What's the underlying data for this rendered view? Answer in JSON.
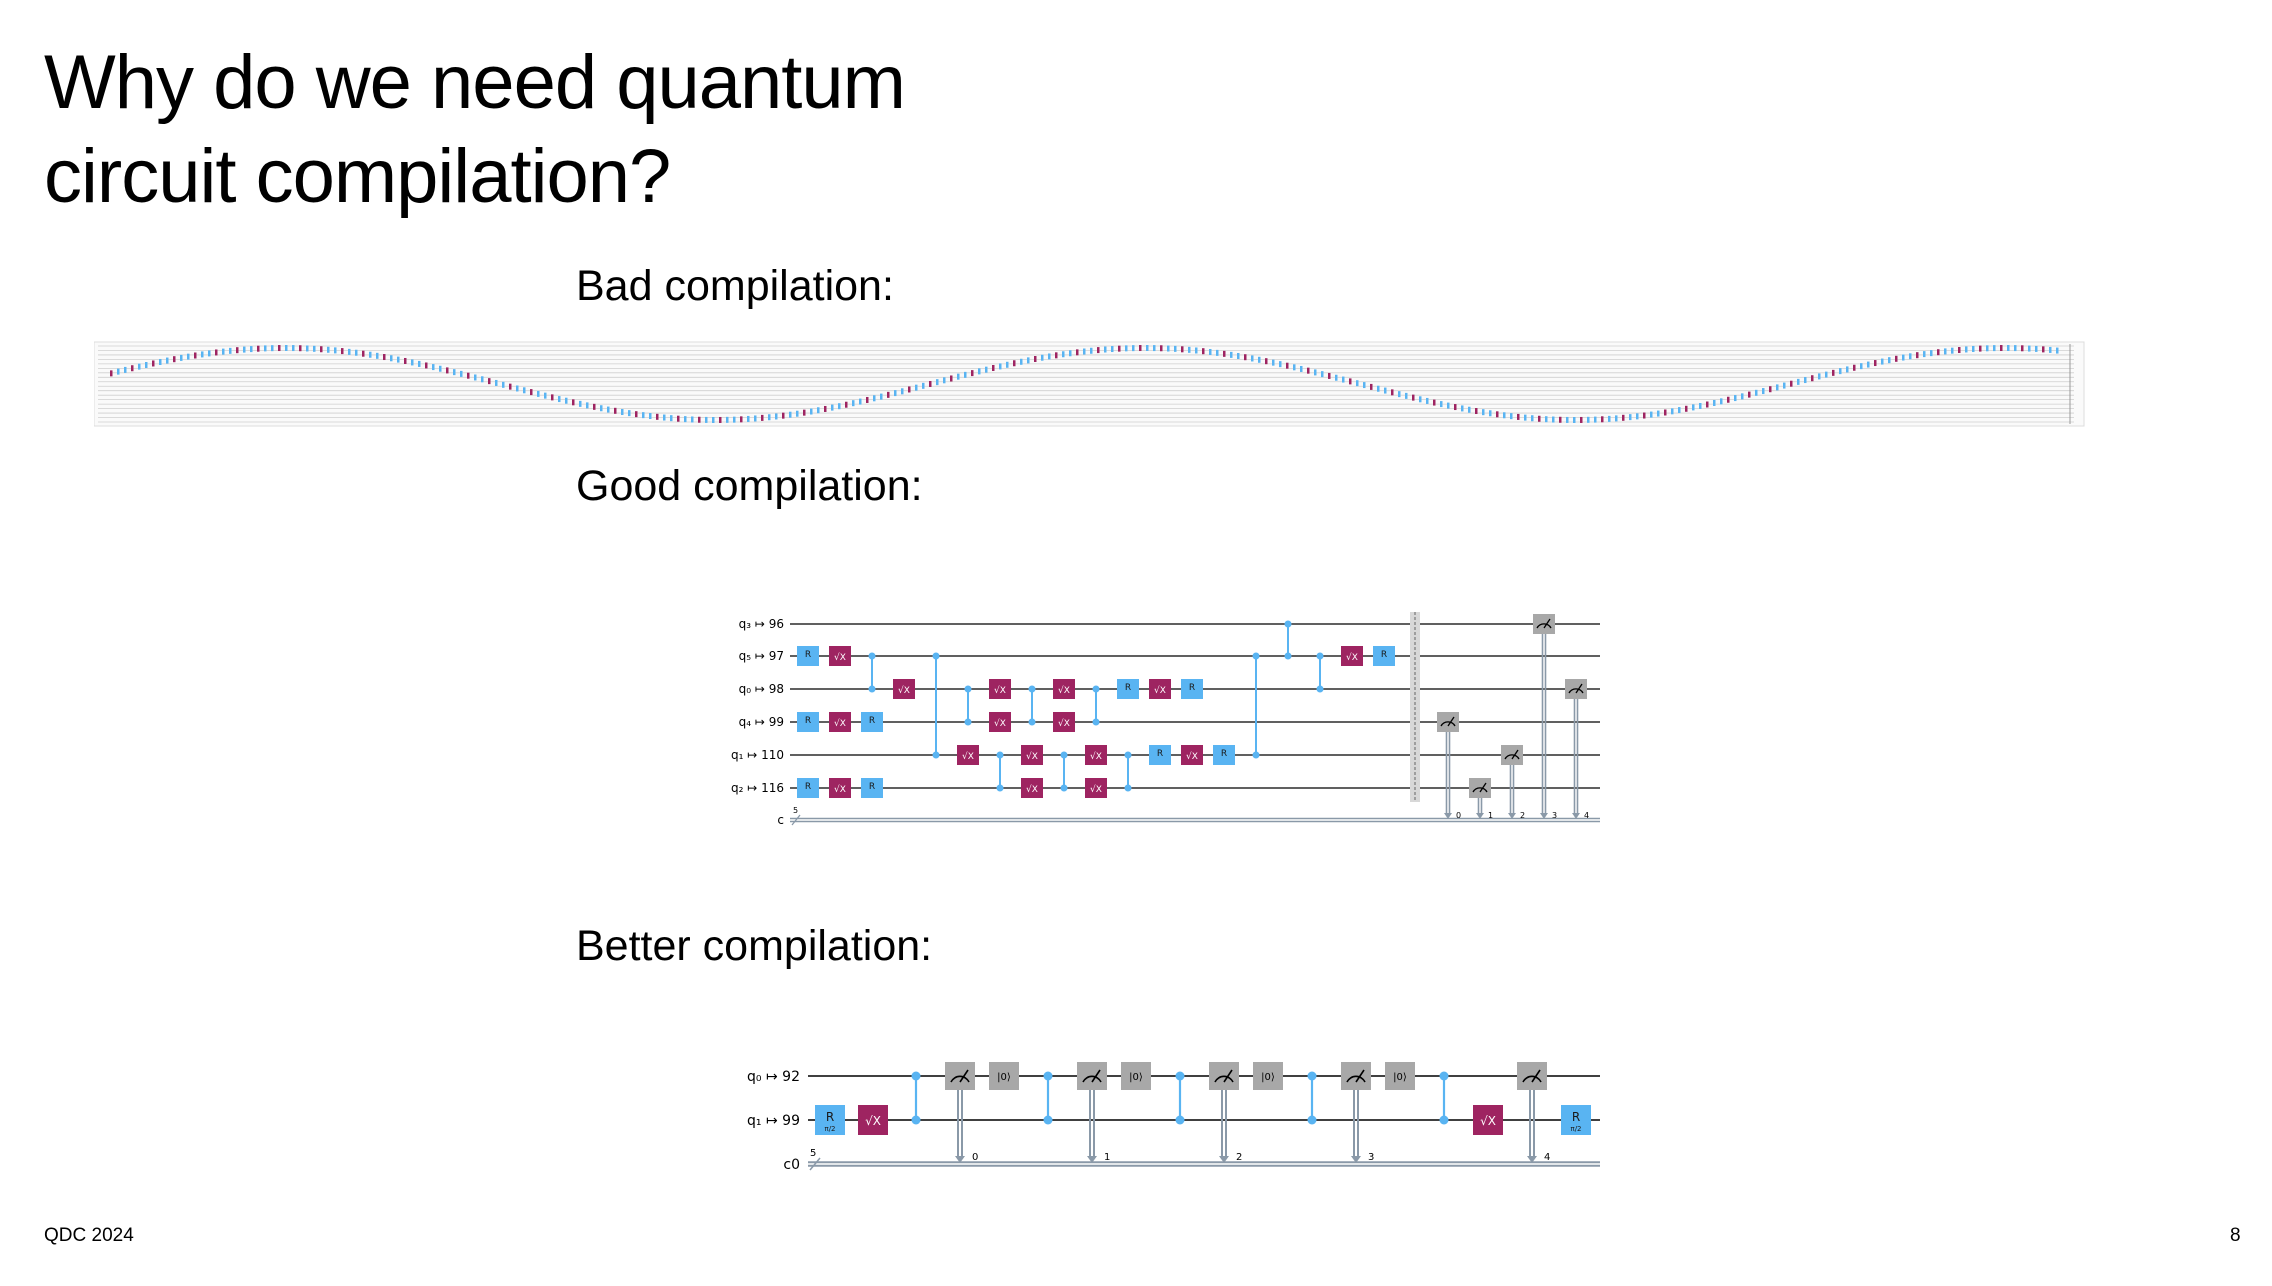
{
  "slide": {
    "title_line1": "Why do we need quantum",
    "title_line2": "circuit compilation?",
    "footer_left": "QDC 2024",
    "page_number": "8"
  },
  "sections": {
    "bad": "Bad compilation:",
    "good": "Good compilation:",
    "better": "Better compilation:"
  },
  "colors": {
    "rz_gate": "#59b4f2",
    "sx_gate": "#9e2461",
    "measure_gate": "#a8a8a8",
    "wire": "#000000",
    "classical_wire": "#8a99a8",
    "control": "#59b4f2"
  },
  "good_circuit": {
    "qubits": [
      {
        "label": "q₃ ↦ 96"
      },
      {
        "label": "q₅ ↦ 97"
      },
      {
        "label": "q₀ ↦ 98"
      },
      {
        "label": "q₄ ↦ 99"
      },
      {
        "label": "q₁ ↦ 110"
      },
      {
        "label": "q₂ ↦ 116"
      }
    ],
    "classical_label": "c",
    "classical_count": "5",
    "rz_text": "R",
    "sx_text": "√X",
    "measure_bits": [
      "0",
      "1",
      "2",
      "3",
      "4"
    ]
  },
  "better_circuit": {
    "qubits": [
      {
        "label": "q₀ ↦ 92"
      },
      {
        "label": "q₁ ↦ 99"
      }
    ],
    "classical_label": "c0",
    "classical_count": "5",
    "rz_text": "R",
    "rz_angle": "π/2",
    "sx_text": "√X",
    "reset_text": "|0⟩",
    "measure_bits": [
      "0",
      "1",
      "2",
      "3",
      "4"
    ]
  }
}
